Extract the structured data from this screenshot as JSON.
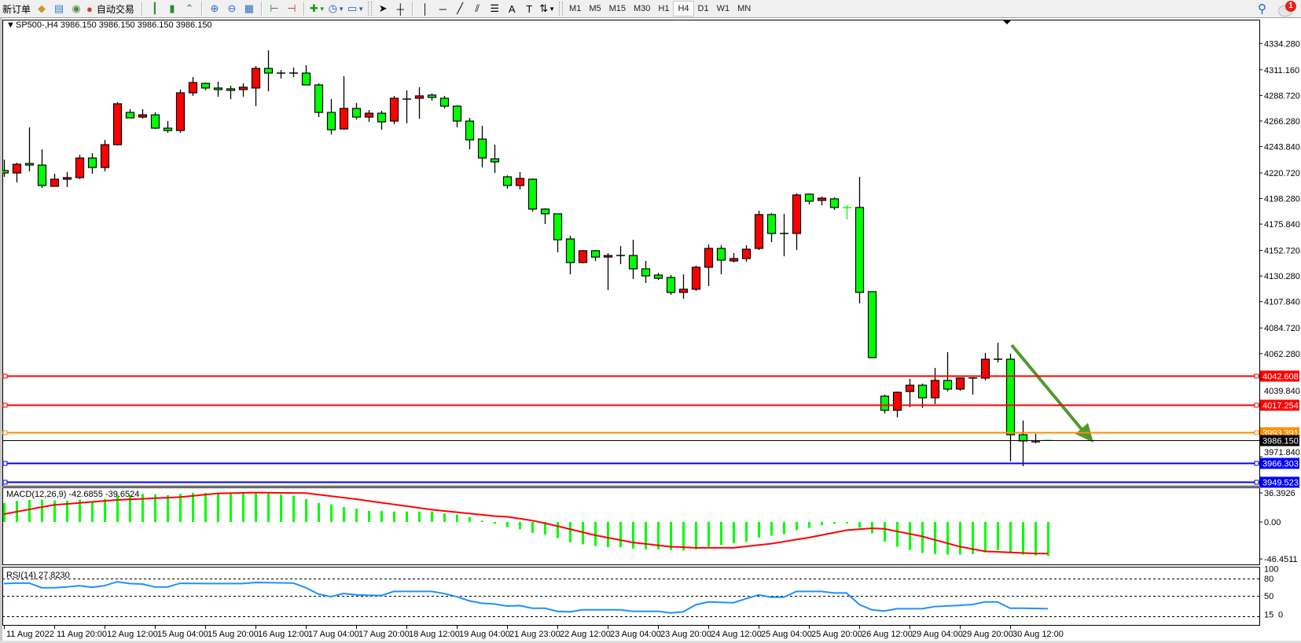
{
  "toolbar": {
    "new_order": "新订单",
    "auto_trading": "自动交易",
    "icons": [
      "market-watch-icon",
      "data-window-icon",
      "signals-icon",
      "auto-trading-icon",
      "bar-chart-icon",
      "candlestick-icon",
      "line-chart-icon",
      "zoom-in-icon",
      "zoom-out-icon",
      "tile-windows-icon",
      "chart-shift-icon",
      "autoscroll-icon",
      "indicators-icon",
      "periods-icon",
      "templates-icon",
      "cursor-icon",
      "crosshair-icon",
      "vertical-line-icon",
      "horizontal-line-icon",
      "trendline-icon",
      "equidistant-channel-icon",
      "fibonacci-icon",
      "text-icon",
      "text-label-icon",
      "arrows-icon"
    ],
    "text_tool": "A",
    "timeframes": [
      "M1",
      "M5",
      "M15",
      "M30",
      "H1",
      "H4",
      "D1",
      "W1",
      "MN"
    ],
    "active_timeframe": "H4",
    "alerts_count": "1"
  },
  "chart": {
    "title": "SP500-,H4  3986.150 3986.150 3986.150 3986.150",
    "bull_color": "#ff0000",
    "bear_color": "#00ff00",
    "price_ticks": [
      "4334.280",
      "4311.160",
      "4288.720",
      "4266.280",
      "4243.840",
      "4220.720",
      "4198.280",
      "4175.840",
      "4152.720",
      "4130.280",
      "4107.840",
      "4084.720",
      "4062.280",
      "4039.840",
      "3971.840"
    ],
    "levels": [
      {
        "price": "4042.608",
        "color": "#ff0000"
      },
      {
        "price": "4017.254",
        "color": "#ff0000"
      },
      {
        "price": "3993.391",
        "color": "#ff8c00"
      },
      {
        "price": "3966.303",
        "color": "#0000ff"
      },
      {
        "price": "3949.523",
        "color": "#0000ff"
      }
    ],
    "current_price": "3986.150",
    "arrow_color": "#4f9a2f",
    "time_labels": [
      "11 Aug 2022",
      "11 Aug 20:00",
      "12 Aug 12:00",
      "15 Aug 04:00",
      "15 Aug 20:00",
      "16 Aug 12:00",
      "17 Aug 04:00",
      "17 Aug 20:00",
      "18 Aug 12:00",
      "19 Aug 04:00",
      "21 Aug 23:00",
      "22 Aug 12:00",
      "23 Aug 04:00",
      "23 Aug 20:00",
      "24 Aug 12:00",
      "25 Aug 04:00",
      "25 Aug 20:00",
      "26 Aug 12:00",
      "29 Aug 04:00",
      "29 Aug 20:00",
      "30 Aug 12:00"
    ],
    "ohlc": [
      [
        4222.8,
        4232.4,
        4217.3,
        4220.7
      ],
      [
        4220.7,
        4229.7,
        4212.4,
        4228.3
      ],
      [
        4229.0,
        4260.7,
        4222.1,
        4227.6
      ],
      [
        4227.6,
        4241.4,
        4207.6,
        4209.7
      ],
      [
        4209.0,
        4220.0,
        4209.0,
        4215.2
      ],
      [
        4215.2,
        4221.4,
        4208.3,
        4216.6
      ],
      [
        4216.6,
        4236.6,
        4215.2,
        4233.8
      ],
      [
        4233.8,
        4238.0,
        4220.0,
        4225.5
      ],
      [
        4225.5,
        4249.7,
        4222.1,
        4245.5
      ],
      [
        4245.5,
        4282.8,
        4244.8,
        4281.4
      ],
      [
        4273.8,
        4276.6,
        4269.0,
        4269.0
      ],
      [
        4269.7,
        4276.6,
        4268.3,
        4271.7
      ],
      [
        4271.7,
        4273.8,
        4259.3,
        4260.0
      ],
      [
        4260.0,
        4266.2,
        4255.9,
        4257.9
      ],
      [
        4257.9,
        4293.8,
        4255.9,
        4291.0
      ],
      [
        4291.0,
        4304.8,
        4288.3,
        4300.0
      ],
      [
        4299.3,
        4300.0,
        4293.1,
        4295.2
      ],
      [
        4295.2,
        4300.7,
        4287.6,
        4293.8
      ],
      [
        4294.5,
        4297.2,
        4285.5,
        4293.1
      ],
      [
        4293.8,
        4299.3,
        4287.6,
        4295.9
      ],
      [
        4295.2,
        4314.5,
        4279.3,
        4312.4
      ],
      [
        4312.4,
        4328.3,
        4292.4,
        4308.3
      ],
      [
        4308.3,
        4311.0,
        4303.5,
        4308.3
      ],
      [
        4308.3,
        4313.1,
        4304.8,
        4308.3
      ],
      [
        4308.3,
        4315.2,
        4297.9,
        4297.9
      ],
      [
        4297.9,
        4299.3,
        4269.7,
        4273.8
      ],
      [
        4273.8,
        4285.5,
        4254.5,
        4258.6
      ],
      [
        4259.3,
        4305.5,
        4258.6,
        4277.3
      ],
      [
        4277.3,
        4282.1,
        4267.6,
        4269.7
      ],
      [
        4269.7,
        4275.9,
        4265.5,
        4273.1
      ],
      [
        4273.1,
        4275.2,
        4258.6,
        4265.5
      ],
      [
        4266.2,
        4288.3,
        4263.5,
        4286.2
      ],
      [
        4285.5,
        4293.1,
        4264.2,
        4285.5
      ],
      [
        4286.2,
        4295.9,
        4268.3,
        4288.3
      ],
      [
        4289.0,
        4290.4,
        4284.1,
        4286.9
      ],
      [
        4286.2,
        4288.3,
        4277.3,
        4279.3
      ],
      [
        4279.3,
        4280.0,
        4260.7,
        4266.2
      ],
      [
        4266.2,
        4269.0,
        4241.4,
        4249.7
      ],
      [
        4250.4,
        4262.1,
        4225.5,
        4233.8
      ],
      [
        4233.1,
        4245.5,
        4220.7,
        4230.4
      ],
      [
        4217.3,
        4218.6,
        4206.9,
        4209.7
      ],
      [
        4209.7,
        4221.4,
        4206.2,
        4215.9
      ],
      [
        4215.2,
        4215.9,
        4186.9,
        4189.0
      ],
      [
        4189.0,
        4189.7,
        4175.9,
        4184.9
      ],
      [
        4184.9,
        4184.9,
        4151.1,
        4162.1
      ],
      [
        4162.8,
        4165.6,
        4131.8,
        4142.1
      ],
      [
        4142.1,
        4153.1,
        4141.4,
        4152.5
      ],
      [
        4152.5,
        4153.1,
        4143.5,
        4146.9
      ],
      [
        4146.9,
        4150.4,
        4118.0,
        4148.3
      ],
      [
        4148.3,
        4156.6,
        4140.7,
        4148.3
      ],
      [
        4148.3,
        4162.1,
        4127.6,
        4136.6
      ],
      [
        4136.6,
        4143.5,
        4124.2,
        4130.4
      ],
      [
        4131.1,
        4133.1,
        4126.9,
        4128.3
      ],
      [
        4129.0,
        4131.1,
        4113.8,
        4115.9
      ],
      [
        4115.9,
        4131.8,
        4110.4,
        4118.7
      ],
      [
        4118.7,
        4139.4,
        4117.3,
        4138.0
      ],
      [
        4138.0,
        4158.0,
        4121.4,
        4154.5
      ],
      [
        4154.5,
        4157.3,
        4131.8,
        4144.2
      ],
      [
        4143.5,
        4150.4,
        4142.1,
        4145.6
      ],
      [
        4145.6,
        4157.3,
        4142.8,
        4153.8
      ],
      [
        4154.5,
        4187.6,
        4153.1,
        4184.2
      ],
      [
        4184.2,
        4185.5,
        4160.0,
        4167.6
      ],
      [
        4167.6,
        4184.9,
        4147.6,
        4167.6
      ],
      [
        4167.6,
        4202.8,
        4153.1,
        4201.4
      ],
      [
        4202.1,
        4202.8,
        4193.1,
        4195.9
      ],
      [
        4196.6,
        4200.0,
        4192.4,
        4198.6
      ],
      [
        4198.0,
        4199.3,
        4188.3,
        4190.4
      ],
      [
        4190.4,
        4192.4,
        4180.0,
        4190.3
      ],
      [
        4190.4,
        4217.3,
        4106.3,
        4115.9
      ],
      [
        4116.6,
        4116.6,
        4058.0,
        4058.7
      ],
      [
        4024.9,
        4026.3,
        4009.7,
        4012.5
      ],
      [
        4012.5,
        4029.0,
        4006.3,
        4028.3
      ],
      [
        4029.0,
        4040.1,
        4015.2,
        4034.5
      ],
      [
        4034.5,
        4035.9,
        4014.6,
        4023.5
      ],
      [
        4023.5,
        4049.7,
        4018.0,
        4038.7
      ],
      [
        4038.7,
        4063.5,
        4029.0,
        4031.1
      ],
      [
        4031.1,
        4041.4,
        4029.7,
        4040.8
      ],
      [
        4040.8,
        4041.4,
        4026.3,
        4040.8
      ],
      [
        4040.8,
        4062.8,
        4038.7,
        4057.3
      ],
      [
        4057.3,
        4071.8,
        4054.5,
        4057.3
      ],
      [
        4057.3,
        4062.1,
        3967.7,
        3991.1
      ],
      [
        3991.1,
        4003.5,
        3963.5,
        3985.6
      ],
      [
        3984.9,
        3991.8,
        3983.5,
        3984.9
      ],
      [
        3986.2,
        3986.2,
        3986.15,
        3986.15
      ]
    ]
  },
  "macd": {
    "label": "MACD(12,26,9) -42.6855 -39.6524",
    "axis_labels": [
      "36.3926",
      "0.00",
      "-46.4511"
    ],
    "histogram_color": "#00ff00",
    "signal_color": "#ff0000",
    "main": [
      23.7,
      26.3,
      27.6,
      27.6,
      27.0,
      26.6,
      27.6,
      26.0,
      28.6,
      33.5,
      33.5,
      35.2,
      34.5,
      33.5,
      35.2,
      36.4,
      36.4,
      36.4,
      35.2,
      35.8,
      35.8,
      35.8,
      34.5,
      32.9,
      28.6,
      23.7,
      22.0,
      18.7,
      16.8,
      13.8,
      13.8,
      13.1,
      13.1,
      13.1,
      13.1,
      10.8,
      9.2,
      6.2,
      1.6,
      -2.3,
      -6.6,
      -9.4,
      -13.8,
      -16.1,
      -20.3,
      -25.8,
      -28.1,
      -30.1,
      -31.6,
      -31.6,
      -33.6,
      -34.4,
      -34.4,
      -35.3,
      -35.9,
      -34.4,
      -31.0,
      -29.0,
      -26.7,
      -24.7,
      -19.6,
      -17.2,
      -15.2,
      -10.3,
      -7.4,
      -4.0,
      -2.3,
      -1.7,
      -7.2,
      -14.3,
      -24.7,
      -31.0,
      -35.3,
      -38.8,
      -40.2,
      -41.0,
      -41.0,
      -40.2,
      -38.2,
      -35.3,
      -38.2,
      -41.0,
      -41.9,
      -42.69
    ],
    "signal": [
      9.9,
      12.8,
      15.7,
      18.6,
      21.4,
      22.6,
      23.9,
      25.1,
      26.4,
      27.6,
      28.3,
      29.0,
      29.8,
      30.5,
      31.2,
      32.7,
      34.3,
      35.8,
      36.1,
      36.5,
      36.8,
      36.7,
      36.5,
      36.4,
      36.2,
      34.3,
      32.4,
      30.5,
      28.6,
      26.4,
      24.2,
      22.0,
      19.8,
      17.6,
      15.4,
      13.8,
      12.2,
      10.6,
      9.0,
      7.4,
      6.5,
      4.2,
      1.8,
      -1.6,
      -5.2,
      -9.0,
      -12.8,
      -16.6,
      -19.7,
      -22.7,
      -25.8,
      -27.5,
      -29.3,
      -31.0,
      -31.7,
      -32.4,
      -32.4,
      -32.4,
      -32.4,
      -30.7,
      -29.0,
      -27.2,
      -24.7,
      -22.1,
      -19.6,
      -16.5,
      -13.4,
      -10.3,
      -9.1,
      -8.0,
      -8.6,
      -11.8,
      -14.9,
      -18.1,
      -22.4,
      -26.7,
      -31.0,
      -33.9,
      -36.8,
      -37.5,
      -38.2,
      -38.9,
      -39.6,
      -39.65
    ]
  },
  "rsi": {
    "label": "RSI(14) 27.8230",
    "axis_labels": [
      "100",
      "80",
      "50",
      "15",
      "0"
    ],
    "levels": [
      80,
      50,
      15
    ],
    "line_color": "#1e90ff",
    "values": [
      71.4,
      72.0,
      72.3,
      64.1,
      64.1,
      65.4,
      67.7,
      64.9,
      67.7,
      74.5,
      71.4,
      70.5,
      65.4,
      65.4,
      71.8,
      71.6,
      71.4,
      71.4,
      71.4,
      71.4,
      73.2,
      72.9,
      72.6,
      72.3,
      64.1,
      53.2,
      48.6,
      54.1,
      51.8,
      51.0,
      50.5,
      57.7,
      57.7,
      57.7,
      57.7,
      54.1,
      48.6,
      41.4,
      37.3,
      35.9,
      32.3,
      33.2,
      28.6,
      28.6,
      23.2,
      22.3,
      25.9,
      25.9,
      25.9,
      25.9,
      23.2,
      23.2,
      23.2,
      20.4,
      22.3,
      34.6,
      39.5,
      38.8,
      38.2,
      45.0,
      51.8,
      47.7,
      47.7,
      57.7,
      57.7,
      57.7,
      55.0,
      55.0,
      35.0,
      25.9,
      23.6,
      27.7,
      27.7,
      27.7,
      31.4,
      32.5,
      33.6,
      35.0,
      39.5,
      39.5,
      28.6,
      28.6,
      28.2,
      27.8
    ]
  }
}
